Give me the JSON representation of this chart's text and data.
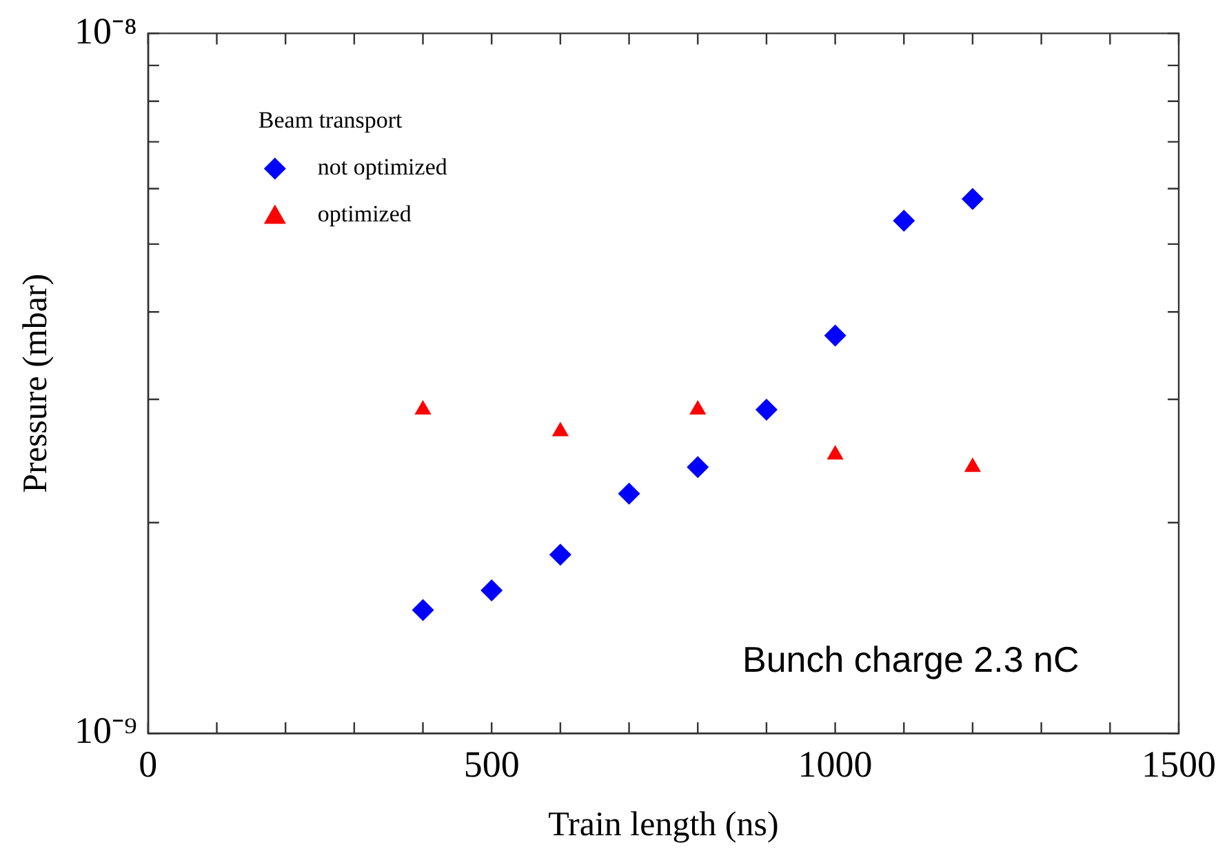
{
  "chart_data": {
    "type": "scatter",
    "xlabel": "Train length (ns)",
    "ylabel": "Pressure (mbar)",
    "legend_title": "Beam transport",
    "series": [
      {
        "name": "not optimized",
        "color": "#0000ff",
        "marker": "diamond",
        "x": [
          400,
          500,
          600,
          700,
          800,
          900,
          1000,
          1100,
          1200
        ],
        "values": [
          1.5e-09,
          1.6e-09,
          1.8e-09,
          2.2e-09,
          2.4e-09,
          2.9e-09,
          3.7e-09,
          5.4e-09,
          5.8e-09
        ]
      },
      {
        "name": "optimized",
        "color": "#ff0000",
        "marker": "triangle",
        "x": [
          400,
          600,
          800,
          1000,
          1200
        ],
        "values": [
          2.9e-09,
          2.7e-09,
          2.9e-09,
          2.5e-09,
          2.4e-09
        ]
      }
    ],
    "xlim": [
      0,
      1500
    ],
    "xticks": [
      0,
      {
        "value": 100,
        "label": null
      },
      {
        "value": 200,
        "label": null
      },
      {
        "value": 300,
        "label": null
      },
      {
        "value": 400,
        "label": null
      },
      500,
      {
        "value": 600,
        "label": null
      },
      {
        "value": 700,
        "label": null
      },
      {
        "value": 800,
        "label": null
      },
      {
        "value": 900,
        "label": null
      },
      1000,
      {
        "value": 1100,
        "label": null
      },
      {
        "value": 1200,
        "label": null
      },
      {
        "value": 1300,
        "label": null
      },
      {
        "value": 1400,
        "label": null
      },
      1500
    ],
    "ylim": [
      1e-09,
      1e-08
    ],
    "yticks": [
      {
        "value": 1e-09,
        "label": "10⁻⁹"
      },
      {
        "value": 2e-09,
        "label": null
      },
      {
        "value": 3e-09,
        "label": null
      },
      {
        "value": 4e-09,
        "label": null
      },
      {
        "value": 5e-09,
        "label": null
      },
      {
        "value": 6e-09,
        "label": null
      },
      {
        "value": 7e-09,
        "label": null
      },
      {
        "value": 8e-09,
        "label": null
      },
      {
        "value": 9e-09,
        "label": null
      },
      {
        "value": 1e-08,
        "label": "10⁻⁸"
      }
    ],
    "log": true,
    "grid": false,
    "legend": "top left",
    "annotations": [
      "Bunch charge 2.3 nC"
    ]
  }
}
